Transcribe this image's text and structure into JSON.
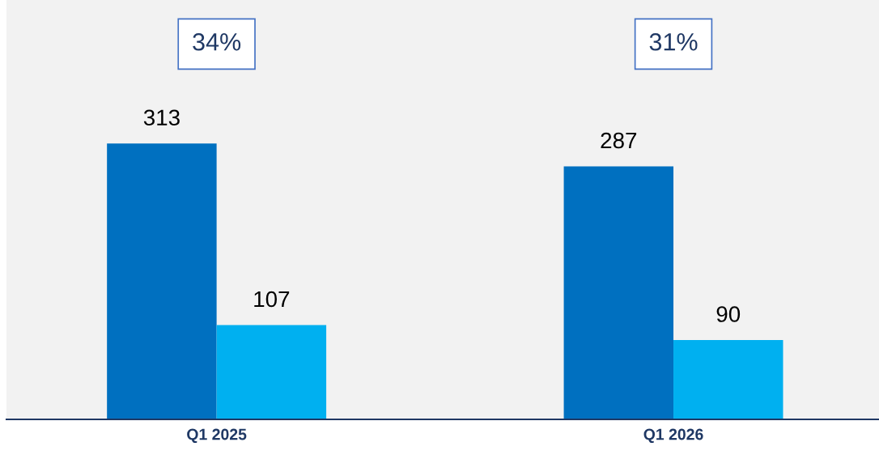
{
  "chart_data": {
    "type": "bar",
    "categories": [
      "Q1 2025",
      "Q1 2026"
    ],
    "series": [
      {
        "color": "#0070c0",
        "values": [
          313,
          287
        ]
      },
      {
        "color": "#00b0f0",
        "values": [
          107,
          90
        ]
      }
    ],
    "data_labels": true,
    "annotations": [
      "34%",
      "31%"
    ]
  }
}
